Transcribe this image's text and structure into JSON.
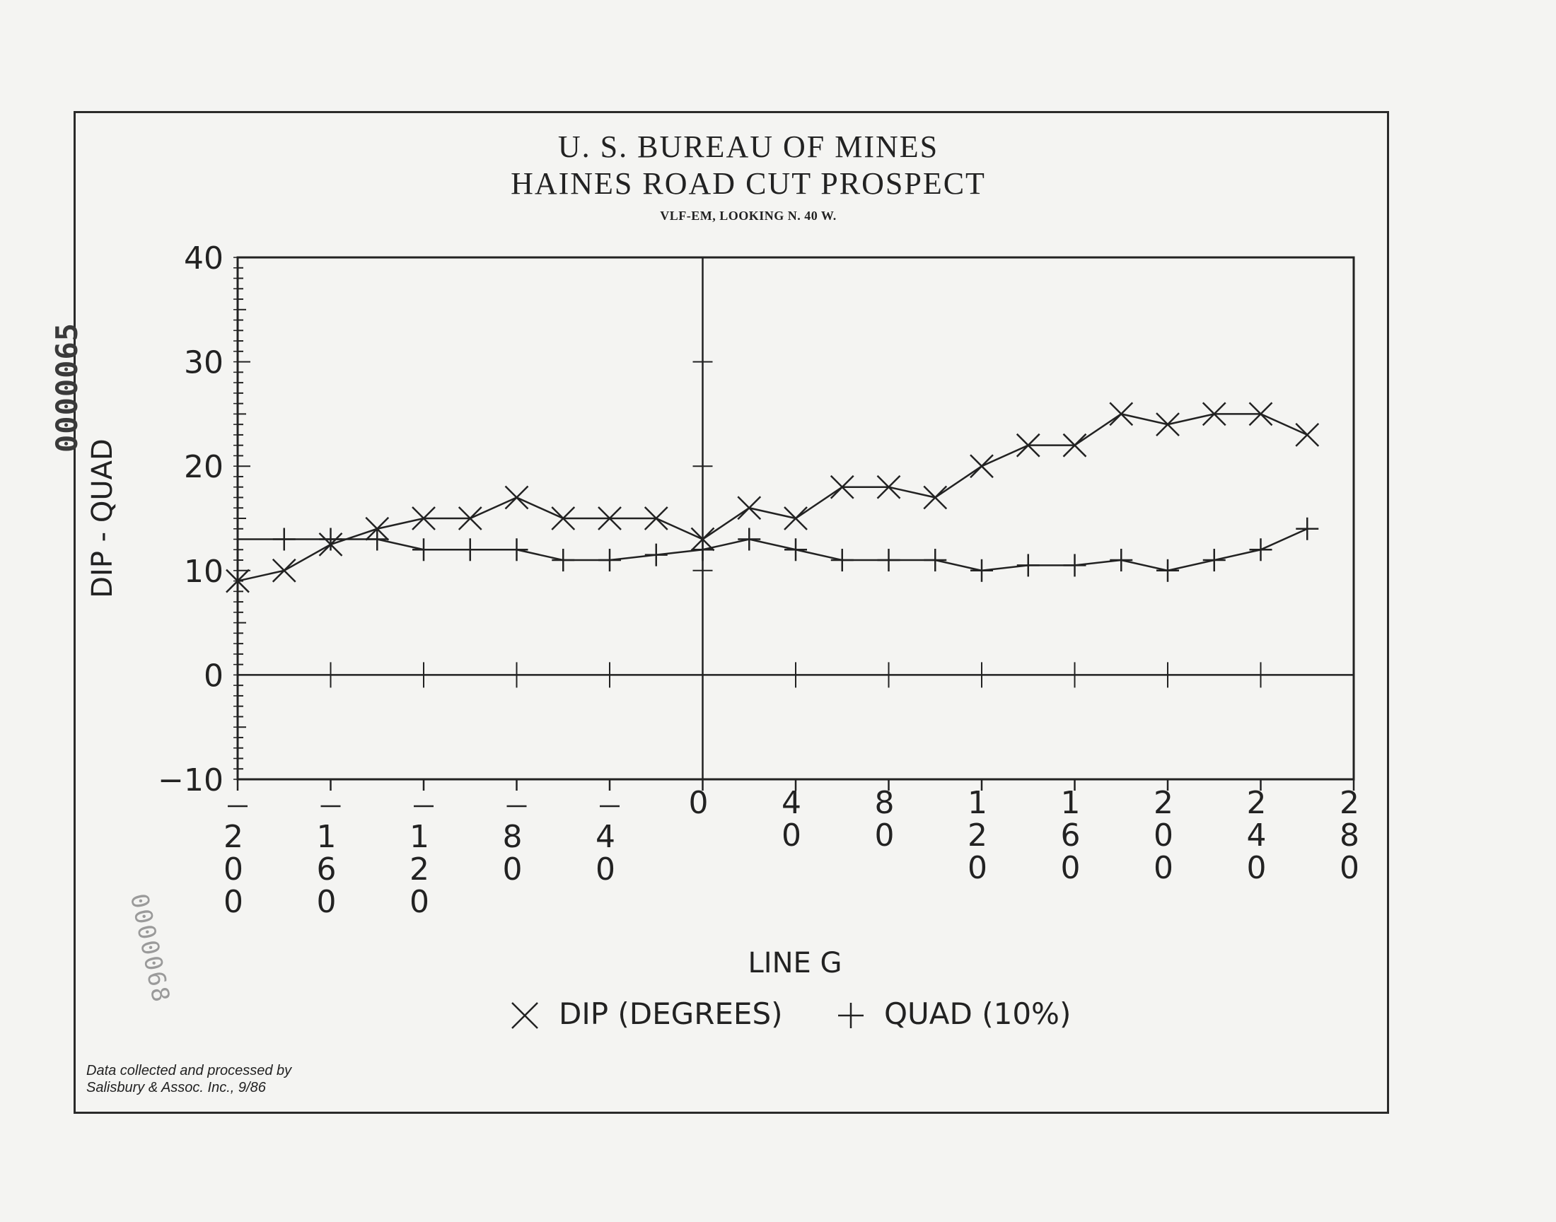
{
  "document": {
    "stamp_vertical": "0000065",
    "stamp_faint": "0000068",
    "credit_line1": "Data collected and processed by",
    "credit_line2": "Salisbury & Assoc. Inc., 9/86"
  },
  "chart_data": {
    "type": "line",
    "title": "U. S. BUREAU OF MINES",
    "subtitle": "HAINES ROAD CUT PROSPECT",
    "subtitle2": "VLF-EM, LOOKING N. 40 W.",
    "xlabel": "LINE G",
    "ylabel": "DIP - QUAD",
    "xlim": [
      -200,
      280
    ],
    "ylim": [
      -10,
      40
    ],
    "x_ticks": [
      -200,
      -160,
      -120,
      -80,
      -40,
      0,
      40,
      80,
      120,
      160,
      200,
      240,
      280
    ],
    "y_ticks": [
      -10,
      0,
      10,
      20,
      30,
      40
    ],
    "grid": false,
    "legend_position": "bottom-center",
    "series": [
      {
        "name": "DIP (DEGREES)",
        "marker": "x",
        "x": [
          -200,
          -180,
          -160,
          -140,
          -120,
          -100,
          -80,
          -60,
          -40,
          -20,
          0,
          20,
          40,
          60,
          80,
          100,
          120,
          140,
          160,
          180,
          200,
          220,
          240,
          260
        ],
        "y": [
          9,
          10,
          12.5,
          14,
          15,
          15,
          17,
          15,
          15,
          15,
          13,
          16,
          15,
          18,
          18,
          17,
          20,
          22,
          22,
          25,
          24,
          25,
          25,
          23
        ]
      },
      {
        "name": "QUAD (10%)",
        "marker": "+",
        "x": [
          -180,
          -160,
          -140,
          -120,
          -100,
          -80,
          -60,
          -40,
          -20,
          0,
          20,
          40,
          60,
          80,
          100,
          120,
          140,
          160,
          180,
          200,
          220,
          240,
          260
        ],
        "y": [
          13,
          13,
          13,
          12,
          12,
          12,
          11,
          11,
          11.5,
          12,
          13,
          12,
          11,
          11,
          11,
          10,
          10.5,
          10.5,
          11,
          10,
          11,
          12,
          14
        ]
      }
    ]
  }
}
